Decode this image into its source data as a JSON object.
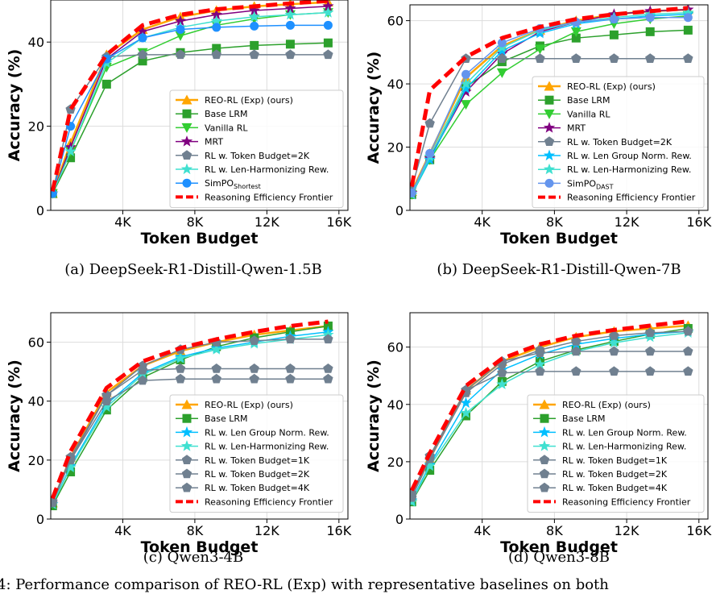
{
  "style": {
    "grid_color": "#dddddd",
    "axis_color": "#000000"
  },
  "bottom_caption": "4: Performance comparison of REO-RL (Exp) with representative baselines on both",
  "series_styles": {
    "REO-RL (Exp) (ours)": {
      "color": "#ffa500",
      "marker": "triangle-up",
      "dashed": false,
      "width": 2.5
    },
    "Base LRM": {
      "color": "#2ca02c",
      "marker": "square",
      "dashed": false,
      "width": 1.5
    },
    "Vanilla RL": {
      "color": "#32cd32",
      "marker": "triangle-down",
      "dashed": false,
      "width": 1.5
    },
    "MRT": {
      "color": "#800080",
      "marker": "star",
      "dashed": false,
      "width": 1.5
    },
    "RL w. Token Budget=2K": {
      "color": "#708090",
      "marker": "pentagon",
      "dashed": false,
      "width": 1.5
    },
    "RL w. Token Budget=1K": {
      "color": "#708090",
      "marker": "pentagon",
      "dashed": false,
      "width": 1.5
    },
    "RL w. Token Budget=4K": {
      "color": "#708090",
      "marker": "pentagon",
      "dashed": false,
      "width": 1.5
    },
    "RL w. Len Group Norm. Rew.": {
      "color": "#00bfff",
      "marker": "star",
      "dashed": false,
      "width": 1.5
    },
    "RL w. Len-Harmonizing Rew.": {
      "color": "#40e0d0",
      "marker": "star",
      "dashed": false,
      "width": 1.5
    },
    "SimPO_Shortest": {
      "color": "#1e90ff",
      "marker": "circle",
      "dashed": false,
      "width": 1.5
    },
    "SimPO_DAST": {
      "color": "#6495ed",
      "marker": "circle",
      "dashed": false,
      "width": 1.5
    },
    "Reasoning Efficiency Frontier": {
      "color": "#ff0000",
      "marker": "none",
      "dashed": true,
      "width": 5
    }
  },
  "chart_data": [
    {
      "type": "line",
      "caption": "(a) DeepSeek-R1-Distill-Qwen-1.5B",
      "xlabel": "Token Budget",
      "ylabel": "Accuracy (%)",
      "xlim": [
        0,
        16500
      ],
      "ylim": [
        0,
        50
      ],
      "xticks": [
        4000,
        8000,
        12000,
        16000
      ],
      "xtick_labels": [
        "4K",
        "8K",
        "12K",
        "16K"
      ],
      "yticks": [
        0,
        20,
        40
      ],
      "ytick_labels": [
        "0",
        "20",
        "40"
      ],
      "grid": true,
      "legend_location": "lower right",
      "x": [
        100,
        1100,
        3100,
        5100,
        7200,
        9200,
        11300,
        13300,
        15400
      ],
      "series": [
        {
          "name": "REO-RL (Exp) (ours)",
          "label": "REO-RL (Exp) (ours)",
          "values": [
            4,
            16,
            37,
            43,
            46,
            47.5,
            48.5,
            49,
            49.5
          ]
        },
        {
          "name": "Base LRM",
          "label": "Base LRM",
          "values": [
            4,
            12.5,
            30,
            35.5,
            37.5,
            38.5,
            39.2,
            39.5,
            39.8
          ]
        },
        {
          "name": "Vanilla RL",
          "label": "Vanilla RL",
          "values": [
            4,
            14,
            34,
            37.5,
            41.5,
            44,
            45.5,
            46.5,
            47
          ]
        },
        {
          "name": "MRT",
          "label": "MRT",
          "values": [
            4,
            15,
            36,
            42.5,
            45,
            46.5,
            47.5,
            48,
            48.5
          ]
        },
        {
          "name": "RL w. Token Budget=2K",
          "label": "RL w. Token Budget=2K",
          "values": [
            4,
            24,
            36.5,
            37,
            37,
            37,
            37,
            37,
            37
          ]
        },
        {
          "name": "RL w. Len-Harmonizing Rew.",
          "label": "RL w. Len-Harmonizing Rew.",
          "values": [
            4,
            14,
            35,
            41,
            43.5,
            45,
            46,
            46.5,
            47
          ]
        },
        {
          "name": "SimPO_Shortest",
          "label": "SimPO",
          "label_sub": "Shortest",
          "values": [
            4,
            20,
            36,
            41,
            43,
            43.5,
            43.8,
            44,
            44
          ]
        },
        {
          "name": "Reasoning Efficiency Frontier",
          "label": "Reasoning Efficiency Frontier",
          "values": [
            4.5,
            24,
            37,
            44,
            46.5,
            47.8,
            48.5,
            49.2,
            49.8
          ]
        }
      ]
    },
    {
      "type": "line",
      "caption": "(b) DeepSeek-R1-Distill-Qwen-7B",
      "xlabel": "Token Budget",
      "ylabel": "Accuracy (%)",
      "xlim": [
        0,
        16500
      ],
      "ylim": [
        0,
        65
      ],
      "xticks": [
        4000,
        8000,
        12000,
        16000
      ],
      "xtick_labels": [
        "4K",
        "8K",
        "12K",
        "16K"
      ],
      "yticks": [
        0,
        20,
        40,
        60
      ],
      "ytick_labels": [
        "0",
        "20",
        "40",
        "60"
      ],
      "grid": true,
      "legend_location": "lower right",
      "x": [
        100,
        1100,
        3100,
        5100,
        7200,
        9200,
        11300,
        13300,
        15400
      ],
      "series": [
        {
          "name": "REO-RL (Exp) (ours)",
          "label": "REO-RL (Exp) (ours)",
          "values": [
            6,
            18,
            42,
            52,
            57,
            60,
            62,
            63,
            63.5
          ]
        },
        {
          "name": "Base LRM",
          "label": "Base LRM",
          "values": [
            5,
            16,
            39,
            47,
            52,
            54.5,
            55.5,
            56.5,
            57
          ]
        },
        {
          "name": "Vanilla RL",
          "label": "Vanilla RL",
          "values": [
            5,
            16,
            33.5,
            43.5,
            51,
            56.5,
            59,
            60.5,
            61.5
          ]
        },
        {
          "name": "MRT",
          "label": "MRT",
          "values": [
            5.5,
            16.5,
            37.5,
            49.5,
            56.5,
            59.5,
            62,
            63,
            63.5
          ]
        },
        {
          "name": "RL w. Token Budget=2K",
          "label": "RL w. Token Budget=2K",
          "values": [
            7,
            27.5,
            48,
            48,
            48,
            48,
            48,
            48,
            48
          ]
        },
        {
          "name": "RL w. Len Group Norm. Rew.",
          "label": "RL w. Len Group Norm. Rew.",
          "values": [
            5,
            16,
            38.5,
            50.5,
            56,
            59,
            60.5,
            61.5,
            62
          ]
        },
        {
          "name": "RL w. Len-Harmonizing Rew.",
          "label": "RL w. Len-Harmonizing Rew.",
          "values": [
            5,
            17,
            40,
            51.5,
            57,
            59.5,
            61,
            62,
            62.5
          ]
        },
        {
          "name": "SimPO_DAST",
          "label": "SimPO",
          "label_sub": "DAST",
          "values": [
            5.5,
            18,
            43,
            53,
            57.5,
            59.5,
            60.5,
            61,
            61
          ]
        },
        {
          "name": "Reasoning Efficiency Frontier",
          "label": "Reasoning Efficiency Frontier",
          "values": [
            7.5,
            38,
            48.5,
            54.5,
            58,
            60.5,
            62,
            63,
            64
          ]
        }
      ]
    },
    {
      "type": "line",
      "caption": "(c) Qwen3-4B",
      "xlabel": "Token Budget",
      "ylabel": "Accuracy (%)",
      "xlim": [
        0,
        16500
      ],
      "ylim": [
        0,
        70
      ],
      "xticks": [
        4000,
        8000,
        12000,
        16000
      ],
      "xtick_labels": [
        "4K",
        "8K",
        "12K",
        "16K"
      ],
      "yticks": [
        0,
        20,
        40,
        60
      ],
      "ytick_labels": [
        "0",
        "20",
        "40",
        "60"
      ],
      "grid": true,
      "legend_location": "lower right",
      "x": [
        100,
        1100,
        3100,
        5100,
        7200,
        9200,
        11300,
        13300,
        15400
      ],
      "series": [
        {
          "name": "REO-RL (Exp) (ours)",
          "label": "REO-RL (Exp) (ours)",
          "values": [
            5.5,
            21,
            43,
            52,
            57,
            60,
            62.5,
            64,
            65.5
          ]
        },
        {
          "name": "Base LRM",
          "label": "Base LRM",
          "values": [
            4.5,
            16,
            37,
            48,
            54,
            58.5,
            61.5,
            63.5,
            65.5
          ]
        },
        {
          "name": "RL w. Len Group Norm. Rew.",
          "label": "RL w. Len Group Norm. Rew.",
          "values": [
            5,
            18,
            39,
            49.5,
            55,
            58,
            60,
            62,
            63.5
          ]
        },
        {
          "name": "RL w. Len-Harmonizing Rew.",
          "label": "RL w. Len-Harmonizing Rew.",
          "values": [
            5,
            17.5,
            38,
            49,
            54.5,
            57.5,
            59.5,
            61,
            62.5
          ]
        },
        {
          "name": "RL w. Token Budget=1K",
          "label": "RL w. Token Budget=1K",
          "values": [
            6,
            20,
            40,
            47,
            47.5,
            47.5,
            47.5,
            47.5,
            47.5
          ]
        },
        {
          "name": "RL w. Token Budget=2K",
          "label": "RL w. Token Budget=2K",
          "values": [
            6,
            21,
            42,
            50.5,
            51,
            51,
            51,
            51,
            51
          ]
        },
        {
          "name": "RL w. Token Budget=4K",
          "label": "RL w. Token Budget=4K",
          "values": [
            5.5,
            20,
            42,
            52,
            57.5,
            60,
            60.5,
            61,
            61
          ]
        },
        {
          "name": "Reasoning Efficiency Frontier",
          "label": "Reasoning Efficiency Frontier",
          "values": [
            7,
            23,
            44.5,
            53.5,
            58,
            61,
            63.5,
            65.5,
            67
          ]
        }
      ]
    },
    {
      "type": "line",
      "caption": "(d) Qwen3-8B",
      "xlabel": "Token Budget",
      "ylabel": "Accuracy (%)",
      "xlim": [
        0,
        16500
      ],
      "ylim": [
        0,
        72
      ],
      "xticks": [
        4000,
        8000,
        12000,
        16000
      ],
      "xtick_labels": [
        "4K",
        "8K",
        "12K",
        "16K"
      ],
      "yticks": [
        0,
        20,
        40,
        60
      ],
      "ytick_labels": [
        "0",
        "20",
        "40",
        "60"
      ],
      "grid": true,
      "legend_location": "lower right",
      "x": [
        100,
        1100,
        3100,
        5100,
        7200,
        9200,
        11300,
        13300,
        15400
      ],
      "series": [
        {
          "name": "REO-RL (Exp) (ours)",
          "label": "REO-RL (Exp) (ours)",
          "values": [
            8,
            21,
            45,
            55,
            60,
            63.5,
            65.5,
            66.5,
            67.5
          ]
        },
        {
          "name": "Base LRM",
          "label": "Base LRM",
          "values": [
            6,
            17,
            36,
            48,
            55,
            59,
            62,
            64.5,
            66.5
          ]
        },
        {
          "name": "RL w. Len Group Norm. Rew.",
          "label": "RL w. Len Group Norm. Rew.",
          "values": [
            6.5,
            19,
            40.5,
            52,
            57.5,
            61,
            63,
            64.5,
            65.5
          ]
        },
        {
          "name": "RL w. Len-Harmonizing Rew.",
          "label": "RL w. Len-Harmonizing Rew.",
          "values": [
            6,
            18.5,
            37,
            47,
            54,
            58.5,
            61.5,
            63.5,
            65
          ]
        },
        {
          "name": "RL w. Token Budget=1K",
          "label": "RL w. Token Budget=1K",
          "values": [
            9,
            22,
            45,
            51,
            51.5,
            51.5,
            51.5,
            51.5,
            51.5
          ]
        },
        {
          "name": "RL w. Token Budget=2K",
          "label": "RL w. Token Budget=2K",
          "values": [
            8.5,
            22,
            45,
            55,
            58,
            58.5,
            58.5,
            58.5,
            58.5
          ]
        },
        {
          "name": "RL w. Token Budget=4K",
          "label": "RL w. Token Budget=4K",
          "values": [
            7.5,
            21,
            44,
            54,
            59,
            62,
            64,
            65,
            65.5
          ]
        },
        {
          "name": "Reasoning Efficiency Frontier",
          "label": "Reasoning Efficiency Frontier",
          "values": [
            10,
            23,
            46.5,
            56,
            61,
            64,
            66,
            67.5,
            69
          ]
        }
      ]
    }
  ]
}
